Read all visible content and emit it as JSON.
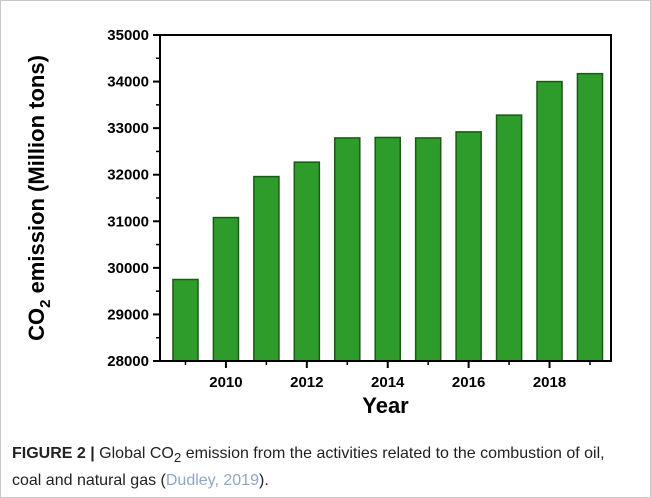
{
  "chart_data": {
    "type": "bar",
    "title": "",
    "xlabel": "Year",
    "ylabel": {
      "prefix": "CO",
      "subscript": "2",
      "suffix": " emission (Million tons)"
    },
    "categories": [
      "2009",
      "2010",
      "2011",
      "2012",
      "2013",
      "2014",
      "2015",
      "2016",
      "2017",
      "2018",
      "2019"
    ],
    "values": [
      29750,
      31080,
      31960,
      32270,
      32790,
      32800,
      32790,
      32920,
      33280,
      34000,
      34170
    ],
    "ylim": [
      28000,
      35000
    ],
    "yticks": [
      "28000",
      "29000",
      "30000",
      "31000",
      "32000",
      "33000",
      "34000",
      "35000"
    ],
    "xticks": [
      "2010",
      "2012",
      "2014",
      "2016",
      "2018"
    ],
    "grid": false,
    "legend": "none",
    "bar_color": "#2e9c2a",
    "bar_edge_color": "#1a5a16"
  },
  "caption": {
    "figure_label": "FIGURE 2 |",
    "text_1": " Global CO",
    "sub": "2",
    "text_2": " emission from the activities related to the combustion of oil, coal and natural gas (",
    "citation": "Dudley, 2019",
    "text_3": ")."
  }
}
